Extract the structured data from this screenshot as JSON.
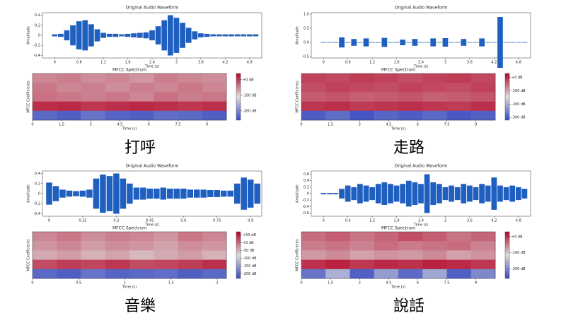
{
  "captions": [
    "打呼",
    "走路",
    "音樂",
    "說話"
  ],
  "chart_data": [
    {
      "type": "waveform",
      "title": "Original Audio Waveform",
      "xlabel": "Time (s)",
      "ylabel": "Amplitude",
      "color": "#1f5fbf",
      "xlim": [
        -0.3,
        5.1
      ],
      "xticks": [
        0,
        0.6,
        1.2,
        1.8,
        2.4,
        3,
        3.6,
        4.2,
        4.8
      ],
      "ylim": [
        -0.45,
        0.45
      ],
      "yticks": [
        -0.4,
        -0.2,
        0,
        0.2,
        0.4
      ],
      "x": [
        0,
        0.15,
        0.3,
        0.45,
        0.6,
        0.75,
        0.9,
        1.05,
        1.2,
        1.35,
        1.5,
        1.65,
        1.8,
        1.95,
        2.1,
        2.25,
        2.4,
        2.55,
        2.7,
        2.85,
        3,
        3.15,
        3.3,
        3.45,
        3.6,
        3.75,
        3.9,
        4.05,
        4.2,
        4.35,
        4.5,
        4.65,
        4.8,
        4.95
      ],
      "values": [
        0.02,
        0.03,
        0.1,
        0.2,
        0.28,
        0.3,
        0.22,
        0.12,
        0.05,
        0.03,
        0.03,
        0.02,
        0.03,
        0.04,
        0.05,
        0.06,
        0.1,
        0.18,
        0.3,
        0.4,
        0.35,
        0.25,
        0.15,
        0.08,
        0.04,
        0.03,
        0.02,
        0.02,
        0.02,
        0.02,
        0.02,
        0.02,
        0.02,
        0.02
      ]
    },
    {
      "type": "heatmap",
      "title": "MFCC Spectrum",
      "xlabel": "Time (s)",
      "ylabel": "MFCC Coefficients",
      "xlim": [
        0,
        10
      ],
      "xticks": [
        0,
        1.5,
        3,
        4.5,
        6,
        7.5,
        9
      ],
      "colors": [
        "#3b4cc0",
        "#dddddd",
        "#b40426"
      ],
      "zlim": [
        -260,
        40
      ],
      "zticks": [
        {
          "value": 0,
          "label": "+0 dB"
        },
        {
          "value": -100,
          "label": "-100 dB"
        },
        {
          "value": -200,
          "label": "-200 dB"
        }
      ],
      "values": [
        [
          -50,
          -45,
          -55,
          -50,
          -60,
          -45,
          -50,
          -55
        ],
        [
          -40,
          -50,
          -45,
          -55,
          -45,
          -50,
          -40,
          -50
        ],
        [
          -35,
          -40,
          -45,
          -40,
          -50,
          -35,
          -45,
          -40
        ],
        [
          10,
          15,
          5,
          10,
          15,
          10,
          5,
          10
        ],
        [
          -230,
          -240,
          -220,
          -235,
          -240,
          -225,
          -230,
          -240
        ]
      ]
    },
    {
      "type": "waveform",
      "title": "Original Audio Waveform",
      "xlabel": "Time (s)",
      "ylabel": "Amplitude",
      "color": "#1f5fbf",
      "xlim": [
        -0.3,
        5.1
      ],
      "xticks": [
        0,
        0.6,
        1.2,
        1.8,
        2.4,
        3,
        3.6,
        4.2,
        4.8
      ],
      "ylim": [
        -0.55,
        1.05
      ],
      "yticks": [
        -0.5,
        {
          "value": 0,
          "label": "0.0"
        },
        0.5,
        {
          "value": 1,
          "label": "1.0"
        }
      ],
      "x": [
        0,
        0.15,
        0.3,
        0.45,
        0.6,
        0.75,
        0.9,
        1.05,
        1.2,
        1.35,
        1.5,
        1.65,
        1.8,
        1.95,
        2.1,
        2.25,
        2.4,
        2.55,
        2.7,
        2.85,
        3,
        3.15,
        3.3,
        3.45,
        3.6,
        3.75,
        3.9,
        4.05,
        4.2,
        4.35,
        4.5,
        4.65,
        4.8,
        4.95
      ],
      "values": [
        0.01,
        0.01,
        0.01,
        0.18,
        0.01,
        0.12,
        0.01,
        0.14,
        0.01,
        0.01,
        0.16,
        0.01,
        0.01,
        0.1,
        0.01,
        0.12,
        0.01,
        0.01,
        0.14,
        0.01,
        0.15,
        0.01,
        0.01,
        0.12,
        0.01,
        0.01,
        0.14,
        0.01,
        0.01,
        0.9,
        0.01,
        0.01,
        0.01,
        0.01
      ]
    },
    {
      "type": "heatmap",
      "title": "MFCC Spectrum",
      "xlabel": "Time (s)",
      "ylabel": "MFCC Coefficients",
      "xlim": [
        0,
        10
      ],
      "xticks": [
        0,
        1.5,
        3,
        4.5,
        6,
        7.5,
        9
      ],
      "colors": [
        "#3b4cc0",
        "#dddddd",
        "#b40426"
      ],
      "zlim": [
        -320,
        30
      ],
      "zticks": [
        {
          "value": 0,
          "label": "+0 dB"
        },
        {
          "value": -100,
          "label": "-100 dB"
        },
        {
          "value": -200,
          "label": "-200 dB"
        },
        {
          "value": -300,
          "label": "-300 dB"
        }
      ],
      "values": [
        [
          -20,
          -25,
          -15,
          -20,
          -30,
          -20,
          -15,
          -25
        ],
        [
          -30,
          -20,
          -25,
          -30,
          -20,
          -25,
          -30,
          -20
        ],
        [
          -40,
          -35,
          -45,
          -40,
          -35,
          -45,
          -40,
          -35
        ],
        [
          -10,
          -5,
          -15,
          -10,
          -5,
          -10,
          -15,
          -5
        ],
        [
          -300,
          -280,
          -310,
          -290,
          -300,
          -285,
          -305,
          -295
        ]
      ]
    },
    {
      "type": "waveform",
      "title": "Original Audio Waveform",
      "xlabel": "Time (s)",
      "ylabel": "Amplitude",
      "color": "#1f5fbf",
      "xlim": [
        -0.03,
        0.95
      ],
      "xticks": [
        0,
        0.15,
        0.3,
        0.45,
        0.6,
        0.75,
        0.9
      ],
      "ylim": [
        -0.45,
        0.45
      ],
      "yticks": [
        -0.4,
        -0.2,
        0,
        0.2,
        0.4
      ],
      "x": [
        0,
        0.03,
        0.06,
        0.09,
        0.12,
        0.15,
        0.18,
        0.21,
        0.24,
        0.27,
        0.3,
        0.33,
        0.36,
        0.39,
        0.42,
        0.45,
        0.48,
        0.51,
        0.54,
        0.57,
        0.6,
        0.63,
        0.66,
        0.69,
        0.72,
        0.75,
        0.78,
        0.81,
        0.84,
        0.87,
        0.9,
        0.93
      ],
      "values": [
        0.22,
        0.15,
        0.08,
        0.06,
        0.05,
        0.06,
        0.08,
        0.3,
        0.38,
        0.35,
        0.4,
        0.3,
        0.2,
        0.12,
        0.12,
        0.1,
        0.1,
        0.12,
        0.1,
        0.1,
        0.1,
        0.08,
        0.08,
        0.08,
        0.07,
        0.07,
        0.06,
        0.06,
        0.2,
        0.32,
        0.28,
        0.2
      ]
    },
    {
      "type": "heatmap",
      "title": "MFCC Spectrum",
      "xlabel": "Time (s)",
      "ylabel": "MFCC Coefficients",
      "xlim": [
        0,
        2.1
      ],
      "xticks": [
        0,
        0.5,
        1,
        1.5,
        2
      ],
      "colors": [
        "#3b4cc0",
        "#dddddd",
        "#b40426"
      ],
      "zlim": [
        -230,
        70
      ],
      "zticks": [
        {
          "value": 50,
          "label": "+50 dB"
        },
        {
          "value": 0,
          "label": "+0 dB"
        },
        {
          "value": -50,
          "label": "-50 dB"
        },
        {
          "value": -100,
          "label": "-100 dB"
        },
        {
          "value": -150,
          "label": "-150 dB"
        },
        {
          "value": -200,
          "label": "-200 dB"
        }
      ],
      "values": [
        [
          -20,
          -10,
          -25,
          -15,
          -20,
          -30,
          -10,
          -20
        ],
        [
          -30,
          -20,
          -35,
          -25,
          -30,
          -40,
          -25,
          -30
        ],
        [
          -45,
          -35,
          -50,
          -40,
          -55,
          -45,
          -35,
          -50
        ],
        [
          20,
          30,
          25,
          35,
          20,
          25,
          30,
          40
        ],
        [
          -200,
          -210,
          -190,
          -205,
          -200,
          -195,
          -210,
          -200
        ]
      ]
    },
    {
      "type": "waveform",
      "title": "Original Audio Waveform",
      "xlabel": "Time (s)",
      "ylabel": "Amplitude",
      "color": "#1f5fbf",
      "xlim": [
        -0.3,
        5.1
      ],
      "xticks": [
        0,
        0.6,
        1.2,
        1.8,
        2.4,
        3,
        3.6,
        4.2,
        4.8
      ],
      "ylim": [
        -0.7,
        0.7
      ],
      "yticks": [
        -0.6,
        -0.4,
        -0.2,
        0,
        0.2,
        0.4,
        0.6
      ],
      "x": [
        0,
        0.15,
        0.3,
        0.45,
        0.6,
        0.75,
        0.9,
        1.05,
        1.2,
        1.35,
        1.5,
        1.65,
        1.8,
        1.95,
        2.1,
        2.25,
        2.4,
        2.55,
        2.7,
        2.85,
        3,
        3.15,
        3.3,
        3.45,
        3.6,
        3.75,
        3.9,
        4.05,
        4.2,
        4.35,
        4.5,
        4.65,
        4.8,
        4.95
      ],
      "values": [
        0.02,
        0.02,
        0.02,
        0.15,
        0.25,
        0.2,
        0.3,
        0.25,
        0.2,
        0.3,
        0.35,
        0.3,
        0.25,
        0.3,
        0.4,
        0.35,
        0.3,
        0.6,
        0.35,
        0.3,
        0.2,
        0.25,
        0.2,
        0.3,
        0.25,
        0.2,
        0.3,
        0.25,
        0.5,
        0.25,
        0.2,
        0.25,
        0.2,
        0.15
      ]
    },
    {
      "type": "heatmap",
      "title": "MFCC Spectrum",
      "xlabel": "Time (s)",
      "ylabel": "MFCC Coefficients",
      "xlim": [
        0,
        10
      ],
      "xticks": [
        0,
        1.5,
        3,
        4.5,
        6,
        7.5,
        9
      ],
      "colors": [
        "#3b4cc0",
        "#dddddd",
        "#b40426"
      ],
      "zlim": [
        -260,
        30
      ],
      "zticks": [
        {
          "value": 0,
          "label": "+0 dB"
        },
        {
          "value": -100,
          "label": "-100 dB"
        },
        {
          "value": -200,
          "label": "-200 dB"
        }
      ],
      "values": [
        [
          -40,
          -30,
          -45,
          -35,
          -20,
          -30,
          -45,
          -35
        ],
        [
          -50,
          -45,
          -55,
          -40,
          -50,
          -45,
          -40,
          -55
        ],
        [
          -70,
          -60,
          -75,
          -65,
          -70,
          -60,
          -75,
          -65
        ],
        [
          0,
          10,
          -5,
          5,
          0,
          10,
          5,
          -5
        ],
        [
          -220,
          -160,
          -240,
          -180,
          -230,
          -170,
          -240,
          -200
        ]
      ]
    }
  ]
}
